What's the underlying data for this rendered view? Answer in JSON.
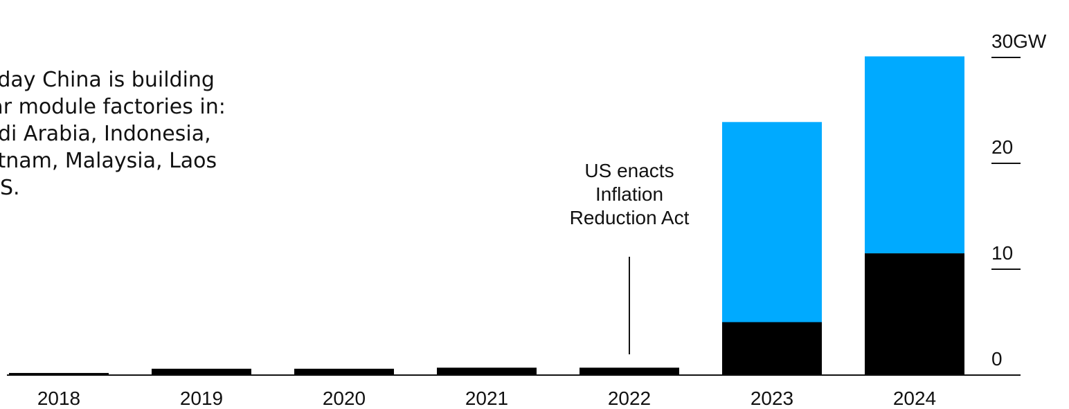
{
  "note": "oday China is building\nlar module factories in:\nudi Arabia, Indonesia,\netnam, Malaysia, Laos\nUS.",
  "colors": {
    "lower": "#000000",
    "upper": "#00aaff",
    "axis": "#111111"
  },
  "chart_data": {
    "type": "bar",
    "stacked": true,
    "categories": [
      "2018",
      "2019",
      "2020",
      "2021",
      "2022",
      "2023",
      "2024"
    ],
    "series": [
      {
        "values": [
          0.2,
          0.6,
          0.6,
          0.7,
          0.7,
          5.0,
          11.5
        ]
      },
      {
        "values": [
          0,
          0,
          0,
          0,
          0,
          18.9,
          18.6
        ]
      }
    ],
    "y_ticks": [
      {
        "value": 0,
        "label": "0"
      },
      {
        "value": 10,
        "label": "10"
      },
      {
        "value": 20,
        "label": "20"
      },
      {
        "value": 30,
        "label": "30GW"
      }
    ],
    "ylim": [
      0,
      30
    ],
    "y_axis_side": "right",
    "grid": false,
    "annotation": {
      "category": "2022",
      "lines": [
        "US enacts",
        "Inflation",
        "Reduction Act"
      ]
    }
  }
}
